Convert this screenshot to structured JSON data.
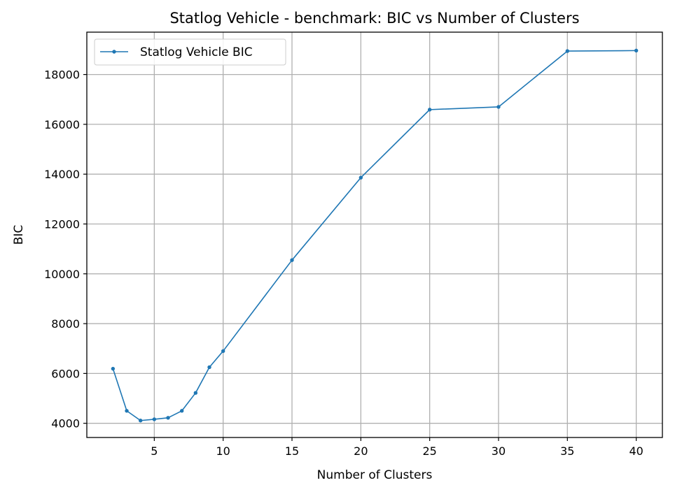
{
  "chart_data": {
    "type": "line",
    "title": "Statlog Vehicle - benchmark: BIC vs Number of Clusters",
    "xlabel": "Number of Clusters",
    "ylabel": "BIC",
    "xlim": [
      0.1,
      41.9
    ],
    "ylim": [
      3430,
      19700
    ],
    "xticks": [
      5,
      10,
      15,
      20,
      25,
      30,
      35,
      40
    ],
    "yticks": [
      4000,
      6000,
      8000,
      10000,
      12000,
      14000,
      16000,
      18000
    ],
    "grid": true,
    "legend_position": "top-left",
    "series": [
      {
        "name": "Statlog Vehicle BIC",
        "color": "#1f77b4",
        "marker": "circle",
        "x": [
          2,
          3,
          4,
          5,
          6,
          7,
          8,
          9,
          10,
          15,
          20,
          25,
          30,
          35,
          40
        ],
        "y": [
          6190,
          4500,
          4110,
          4160,
          4220,
          4500,
          5220,
          6250,
          6900,
          10550,
          13860,
          16590,
          16700,
          18940,
          18960
        ]
      }
    ]
  }
}
